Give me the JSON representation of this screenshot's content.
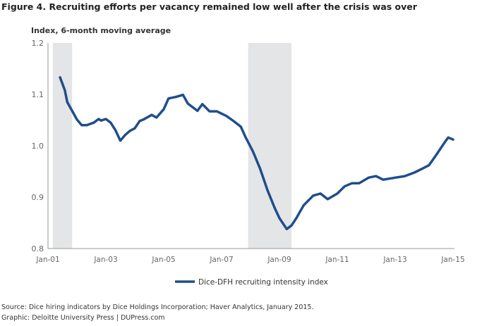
{
  "title": "Figure 4. Recruiting efforts per vacancy remained low well after the crisis was over",
  "source_line1": "Source: Dice hiring indicators by Dice Holdings Incorporation; Haver Analytics, January 2015.",
  "source_line2": "Graphic: Deloitte University Press  |  DUPress.com",
  "chart_data": {
    "type": "line",
    "title": "Figure 4. Recruiting efforts per vacancy remained low well after the crisis was over",
    "ylabel": "Index, 6-month moving average",
    "xlabel": "",
    "ylim": [
      0.8,
      1.2
    ],
    "yticks": [
      "1.2",
      "1.1",
      "1.0",
      "0.9",
      "0.8"
    ],
    "xlim": [
      "2001-01",
      "2015-01"
    ],
    "xticks": [
      "Jan-01",
      "Jan-03",
      "Jan-05",
      "Jan-07",
      "Jan-09",
      "Jan-11",
      "Jan-13",
      "Jan-15"
    ],
    "grid": false,
    "legend": "bottom",
    "shaded_periods": [
      [
        "2001-03",
        "2001-11"
      ],
      [
        "2007-12",
        "2009-06"
      ]
    ],
    "shade_color": "#e4e5e7",
    "series": [
      {
        "name": "Dice-DFH recruiting intensity index",
        "color": "#1f4e8c",
        "x": [
          "2001-06",
          "2001-08",
          "2001-09",
          "2001-11",
          "2002-01",
          "2002-03",
          "2002-05",
          "2002-08",
          "2002-10",
          "2002-11",
          "2003-01",
          "2003-03",
          "2003-05",
          "2003-07",
          "2003-09",
          "2003-11",
          "2004-01",
          "2004-03",
          "2004-05",
          "2004-08",
          "2004-10",
          "2005-01",
          "2005-03",
          "2005-06",
          "2005-09",
          "2005-11",
          "2006-03",
          "2006-05",
          "2006-08",
          "2006-11",
          "2007-03",
          "2007-06",
          "2007-09",
          "2007-11",
          "2008-02",
          "2008-05",
          "2008-08",
          "2008-11",
          "2009-01",
          "2009-04",
          "2009-06",
          "2009-08",
          "2009-11",
          "2010-03",
          "2010-06",
          "2010-09",
          "2011-01",
          "2011-04",
          "2011-07",
          "2011-10",
          "2012-02",
          "2012-05",
          "2012-08",
          "2013-01",
          "2013-05",
          "2013-09",
          "2013-12",
          "2014-03",
          "2014-06",
          "2014-10",
          "2014-11",
          "2015-01"
        ],
        "values": [
          1.133,
          1.108,
          1.085,
          1.068,
          1.051,
          1.04,
          1.04,
          1.045,
          1.052,
          1.049,
          1.052,
          1.045,
          1.03,
          1.01,
          1.021,
          1.029,
          1.034,
          1.048,
          1.052,
          1.06,
          1.055,
          1.071,
          1.092,
          1.095,
          1.099,
          1.082,
          1.068,
          1.081,
          1.067,
          1.067,
          1.058,
          1.048,
          1.037,
          1.016,
          0.989,
          0.955,
          0.914,
          0.879,
          0.859,
          0.838,
          0.845,
          0.859,
          0.884,
          0.903,
          0.907,
          0.896,
          0.907,
          0.921,
          0.927,
          0.927,
          0.938,
          0.941,
          0.934,
          0.938,
          0.941,
          0.948,
          0.955,
          0.962,
          0.982,
          1.01,
          1.016,
          1.012
        ]
      }
    ]
  }
}
